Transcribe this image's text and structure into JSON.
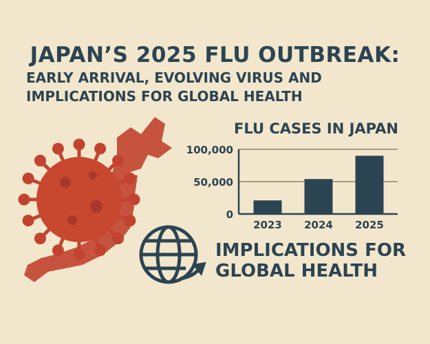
{
  "title": "JAPAN’S 2025 FLU OUTBREAK:",
  "subtitle_lines": [
    "EARLY ARRIVAL, EVOLVING VIRUS AND",
    "IMPLICATIONS FOR GLOBAL HEALTH"
  ],
  "callout_lines": [
    "IMPLICATIONS FOR",
    "GLOBAL HEALTH"
  ],
  "icons": [
    "virus-illustration",
    "japan-map",
    "globe-arrow-icon"
  ],
  "colors": {
    "background": "#f2e7cd",
    "text": "#2c4452",
    "virus": "#c2432f",
    "bar": "#2c4452"
  },
  "chart_data": {
    "type": "bar",
    "title": "FLU CASES IN JAPAN",
    "categories": [
      "2023",
      "2024",
      "2025"
    ],
    "values": [
      21000,
      54000,
      90000
    ],
    "ylim": [
      0,
      100000
    ],
    "yticks": [
      "0",
      "50,000",
      "100,000"
    ],
    "grid": true,
    "xlabel": "",
    "ylabel": ""
  }
}
